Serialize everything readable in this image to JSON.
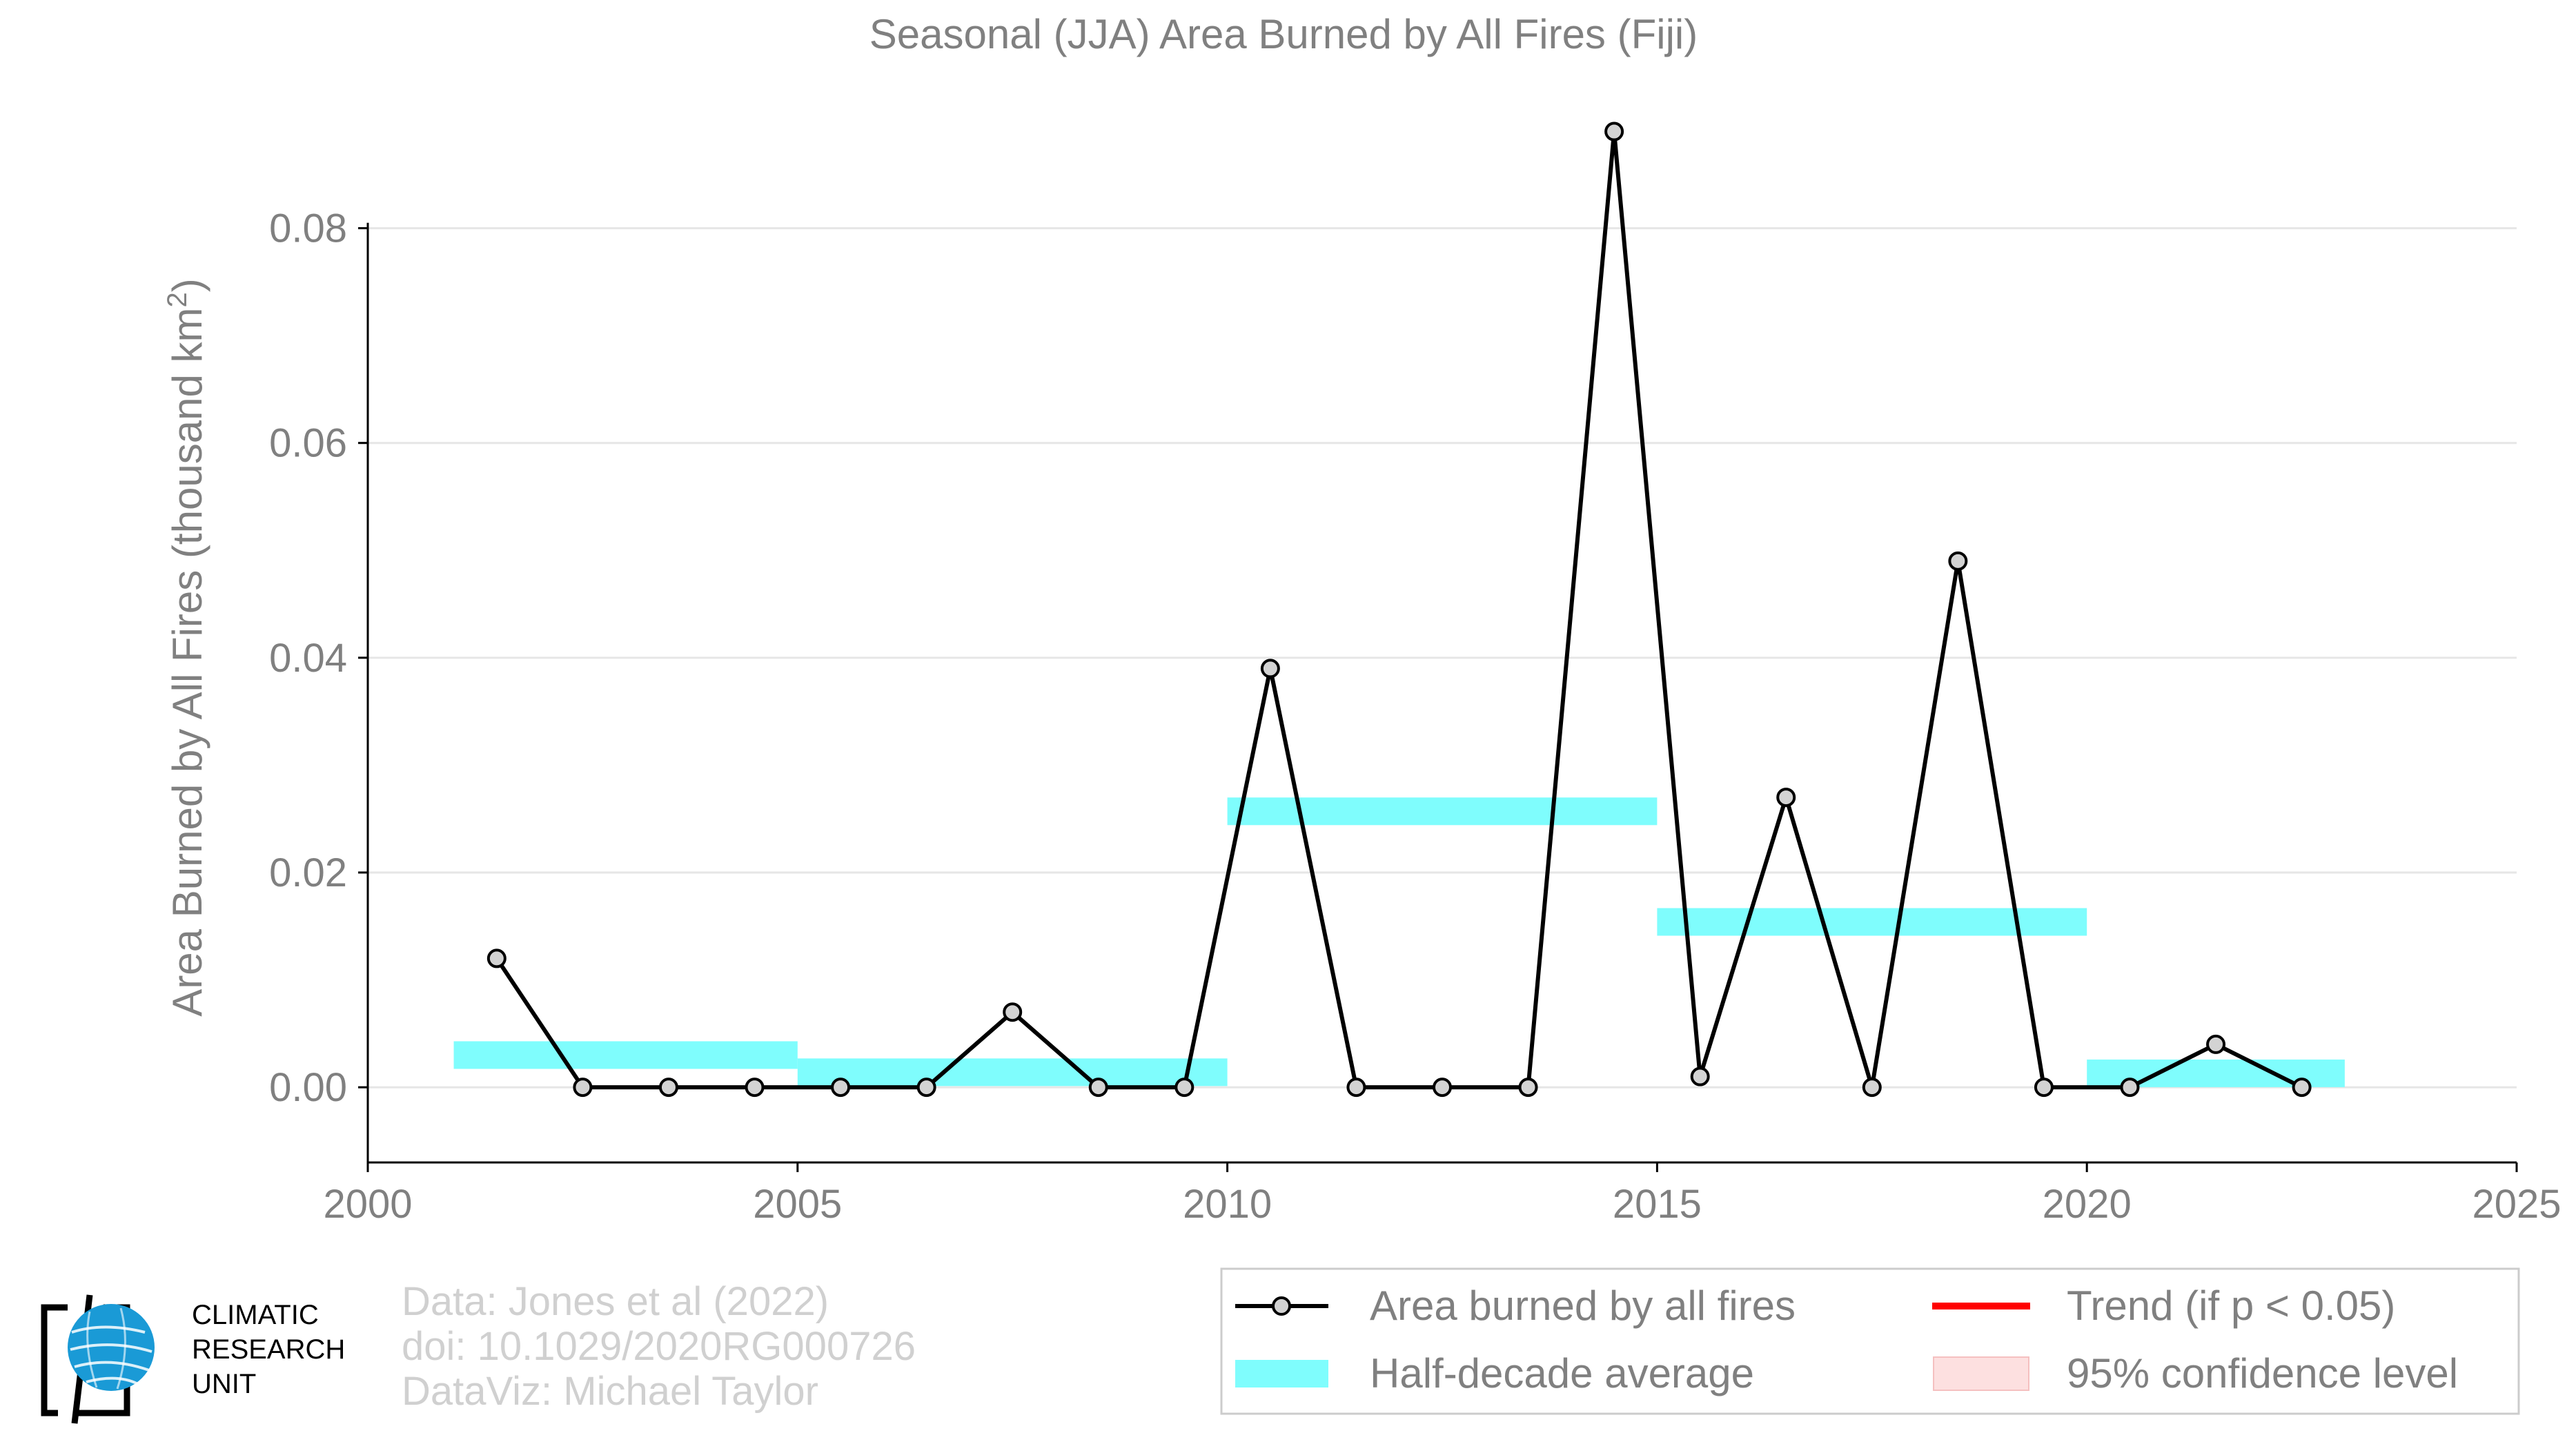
{
  "chart_data": {
    "type": "line",
    "title": "Seasonal (JJA) Area Burned by All Fires (Fiji)",
    "ylabel": "Area Burned by All Fires (thousand km",
    "ylabel_sup": "2",
    "ylabel_close": ")",
    "xlabel": "",
    "xlim": [
      2000,
      2025
    ],
    "ylim": [
      -0.007,
      0.09
    ],
    "x_ticks": [
      "2000",
      "2005",
      "2010",
      "2015",
      "2020",
      "2025"
    ],
    "y_ticks": [
      "0.00",
      "0.02",
      "0.04",
      "0.06",
      "0.08"
    ],
    "grid": "horizontal",
    "series": [
      {
        "name": "Area burned by all fires",
        "color": "#000000",
        "marker_fill": "#d3d3d3",
        "x": [
          2001.5,
          2002.5,
          2003.5,
          2004.5,
          2005.5,
          2006.5,
          2007.5,
          2008.5,
          2009.5,
          2010.5,
          2011.5,
          2012.5,
          2013.5,
          2014.5,
          2015.5,
          2016.5,
          2017.5,
          2018.5,
          2019.5,
          2020.5,
          2021.5,
          2022.5
        ],
        "values": [
          0.012,
          0.0,
          0.0,
          0.0,
          0.0,
          0.0,
          0.007,
          0.0,
          0.0,
          0.039,
          0.0,
          0.0,
          0.0,
          0.089,
          0.001,
          0.027,
          0.0,
          0.049,
          0.0,
          0.0,
          0.004,
          0.0
        ]
      }
    ],
    "half_decade_average": {
      "name": "Half-decade average",
      "color": "#7ffdfd",
      "segments": [
        {
          "start": 2001,
          "end": 2005,
          "value": 0.003
        },
        {
          "start": 2005,
          "end": 2010,
          "value": 0.0014
        },
        {
          "start": 2010,
          "end": 2015,
          "value": 0.0257
        },
        {
          "start": 2015,
          "end": 2020,
          "value": 0.0154
        },
        {
          "start": 2020,
          "end": 2023,
          "value": 0.0013
        }
      ]
    },
    "legend": {
      "placement": "bottom-right",
      "items": [
        {
          "label": "Area burned by all fires",
          "kind": "line-marker",
          "color": "#000000"
        },
        {
          "label": "Trend (if p < 0.05)",
          "kind": "line",
          "color": "#ff0000"
        },
        {
          "label": "Half-decade average",
          "kind": "band",
          "color": "#7ffdfd"
        },
        {
          "label": "95% confidence level",
          "kind": "band",
          "color": "#fde0e0"
        }
      ]
    }
  },
  "logo": {
    "line1": "CLIMATIC",
    "line2": "RESEARCH",
    "line3": "UNIT",
    "globe_color": "#1a9ad6"
  },
  "credits": {
    "line1": "Data: Jones et al (2022)",
    "line2": "doi: 10.1029/2020RG000726",
    "line3": "DataViz: Michael Taylor"
  },
  "colors": {
    "text_gray": "#808080",
    "axis": "#000000",
    "grid": "#e6e6e6",
    "credit_gray": "#d0d0d0"
  }
}
